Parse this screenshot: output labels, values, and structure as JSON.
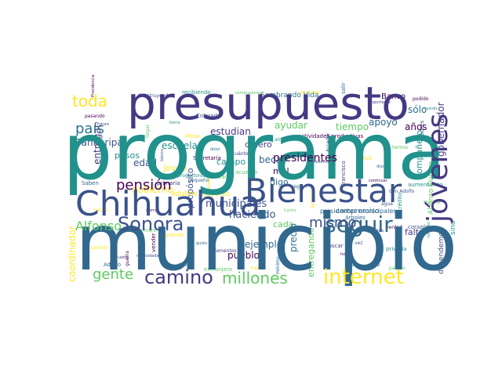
{
  "wordcloud": {
    "background": "#ffffff",
    "palette": [
      "#440154",
      "#3b528b",
      "#21918c",
      "#5ec962",
      "#fde725"
    ],
    "big_words": [
      {
        "text": "programa",
        "color": "#21918c"
      },
      {
        "text": "municipio",
        "color": "#31688e"
      },
      {
        "text": "presupuesto",
        "color": "#443983"
      },
      {
        "text": "Chihuahua",
        "color": "#3b528b"
      },
      {
        "text": "Bienestar",
        "color": "#3b528b"
      },
      {
        "text": "jóvenes",
        "color": "#443983"
      },
      {
        "text": "internet",
        "color": "#fde725"
      },
      {
        "text": "camino",
        "color": "#443983"
      },
      {
        "text": "millones",
        "color": "#5ec962"
      },
      {
        "text": "seguir",
        "color": "#31688e"
      },
      {
        "text": "mismo",
        "color": "#3b528b"
      },
      {
        "text": "Sonora",
        "color": "#3b528b"
      },
      {
        "text": "pensión",
        "color": "#440154"
      },
      {
        "text": "país",
        "color": "#2c728e"
      },
      {
        "text": "toda",
        "color": "#fde725"
      },
      {
        "text": "gente",
        "color": "#5ec962"
      },
      {
        "text": "Alfonso",
        "color": "#5ec962"
      },
      {
        "text": "presidentes",
        "color": "#440154"
      },
      {
        "text": "municipales",
        "color": "#3b528b"
      }
    ],
    "mid_words": [
      "Sahuaripa",
      "escuela",
      "estudian",
      "tiempo",
      "apoyo",
      "años",
      "sólo",
      "gobierno",
      "edad",
      "pesos",
      "entregar",
      "ayudar",
      "beca",
      "mal",
      "digo",
      "joven",
      "haciendo",
      "campo",
      "quiero",
      "cada",
      "ejemplo",
      "pueblo",
      "precio",
      "coordinador",
      "propósito",
      "compañero",
      "falta",
      "entregando",
      "compromiso",
      "Banco",
      "Sembrando Vida",
      "adultos mayores",
      "dependemos",
      "sino",
      "gobernador",
      "Alfonso Durazo",
      "presidentes municipales"
    ],
    "small_words": [
      "Presidencia",
      "Construyendo",
      "recibiendo",
      "sembradores",
      "universal",
      "salir",
      "importante",
      "podido",
      "Colorada",
      "tierra",
      "llegar",
      "Mesa",
      "dolor",
      "cuánto",
      "Secretaría",
      "básico",
      "productores",
      "frutales",
      "menos",
      "región",
      "Francisco",
      "continuar",
      "don Adolfo",
      "aumentando",
      "Carlos",
      "aparatos",
      "árboles",
      "gasolina",
      "verdad",
      "corazón",
      "inflación",
      "nombre",
      "grande",
      "gusto",
      "elementos",
      "vender",
      "necesidades",
      "dinero",
      "extranjero",
      "frijol",
      "mínimo",
      "buscar",
      "hoy",
      "vez",
      "privada",
      "trabajo",
      "hacen",
      "Saben",
      "futuro",
      "pasando",
      "madres",
      "mundo",
      "hemos",
      "Ruiz",
      "dijo",
      "Acceder",
      "actividades productivas",
      "sexenio",
      "alcance",
      "acuerdo",
      "visitado",
      "pequeño",
      "primaria",
      "sierra",
      "agua",
      "crédito",
      "Mientras",
      "partido",
      "Adolfo",
      "cuatro",
      "guerra",
      "solo",
      "casa",
      "padres"
    ]
  }
}
